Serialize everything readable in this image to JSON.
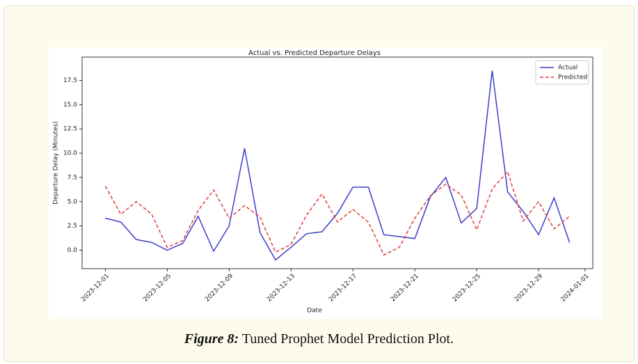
{
  "chart_data": {
    "type": "line",
    "title": "Actual vs. Predicted Departure Delays",
    "x_label": "Date",
    "y_label": "Departure Delay (Minutes)",
    "x": [
      "2023-12-01",
      "2023-12-02",
      "2023-12-03",
      "2023-12-04",
      "2023-12-05",
      "2023-12-06",
      "2023-12-07",
      "2023-12-08",
      "2023-12-09",
      "2023-12-10",
      "2023-12-11",
      "2023-12-12",
      "2023-12-13",
      "2023-12-14",
      "2023-12-15",
      "2023-12-16",
      "2023-12-17",
      "2023-12-18",
      "2023-12-19",
      "2023-12-20",
      "2023-12-21",
      "2023-12-22",
      "2023-12-23",
      "2023-12-24",
      "2023-12-25",
      "2023-12-26",
      "2023-12-27",
      "2023-12-28",
      "2023-12-29",
      "2023-12-30",
      "2023-12-31"
    ],
    "series": [
      {
        "name": "Actual",
        "color": "#3c3cc8",
        "dash": false,
        "values": [
          3.3,
          2.9,
          1.1,
          0.8,
          0.0,
          0.7,
          3.5,
          -0.1,
          2.5,
          10.5,
          1.8,
          -1.0,
          0.3,
          1.7,
          1.9,
          3.8,
          6.5,
          6.5,
          1.6,
          1.4,
          1.2,
          5.5,
          7.5,
          2.8,
          4.3,
          18.5,
          6.0,
          4.0,
          1.6,
          5.4,
          0.8
        ]
      },
      {
        "name": "Predicted",
        "color": "#e03c3c",
        "dash": true,
        "values": [
          6.6,
          3.7,
          5.0,
          3.7,
          0.3,
          1.0,
          4.1,
          6.2,
          3.3,
          4.6,
          3.4,
          -0.2,
          0.6,
          3.6,
          5.8,
          2.9,
          4.2,
          2.9,
          -0.5,
          0.3,
          3.3,
          5.6,
          6.8,
          5.7,
          2.1,
          6.3,
          8.1,
          3.0,
          5.0,
          2.2,
          3.5
        ]
      }
    ],
    "xticks": [
      "2023-12-01",
      "2023-12-05",
      "2023-12-09",
      "2023-12-13",
      "2023-12-17",
      "2023-12-21",
      "2023-12-25",
      "2023-12-29",
      "2024-01-01"
    ],
    "ylim": [
      -1.9,
      19.9
    ],
    "yticks": [
      {
        "value": 0,
        "label": "0.0"
      },
      2.5,
      {
        "value": 5,
        "label": "5.0"
      },
      7.5,
      {
        "value": 10,
        "label": "10.0"
      },
      12.5,
      {
        "value": 15,
        "label": "15.0"
      },
      17.5
    ],
    "grid": false,
    "legend": "upper right"
  },
  "caption": {
    "label": "Figure 8:",
    "text": "Tuned Prophet Model Prediction Plot."
  }
}
